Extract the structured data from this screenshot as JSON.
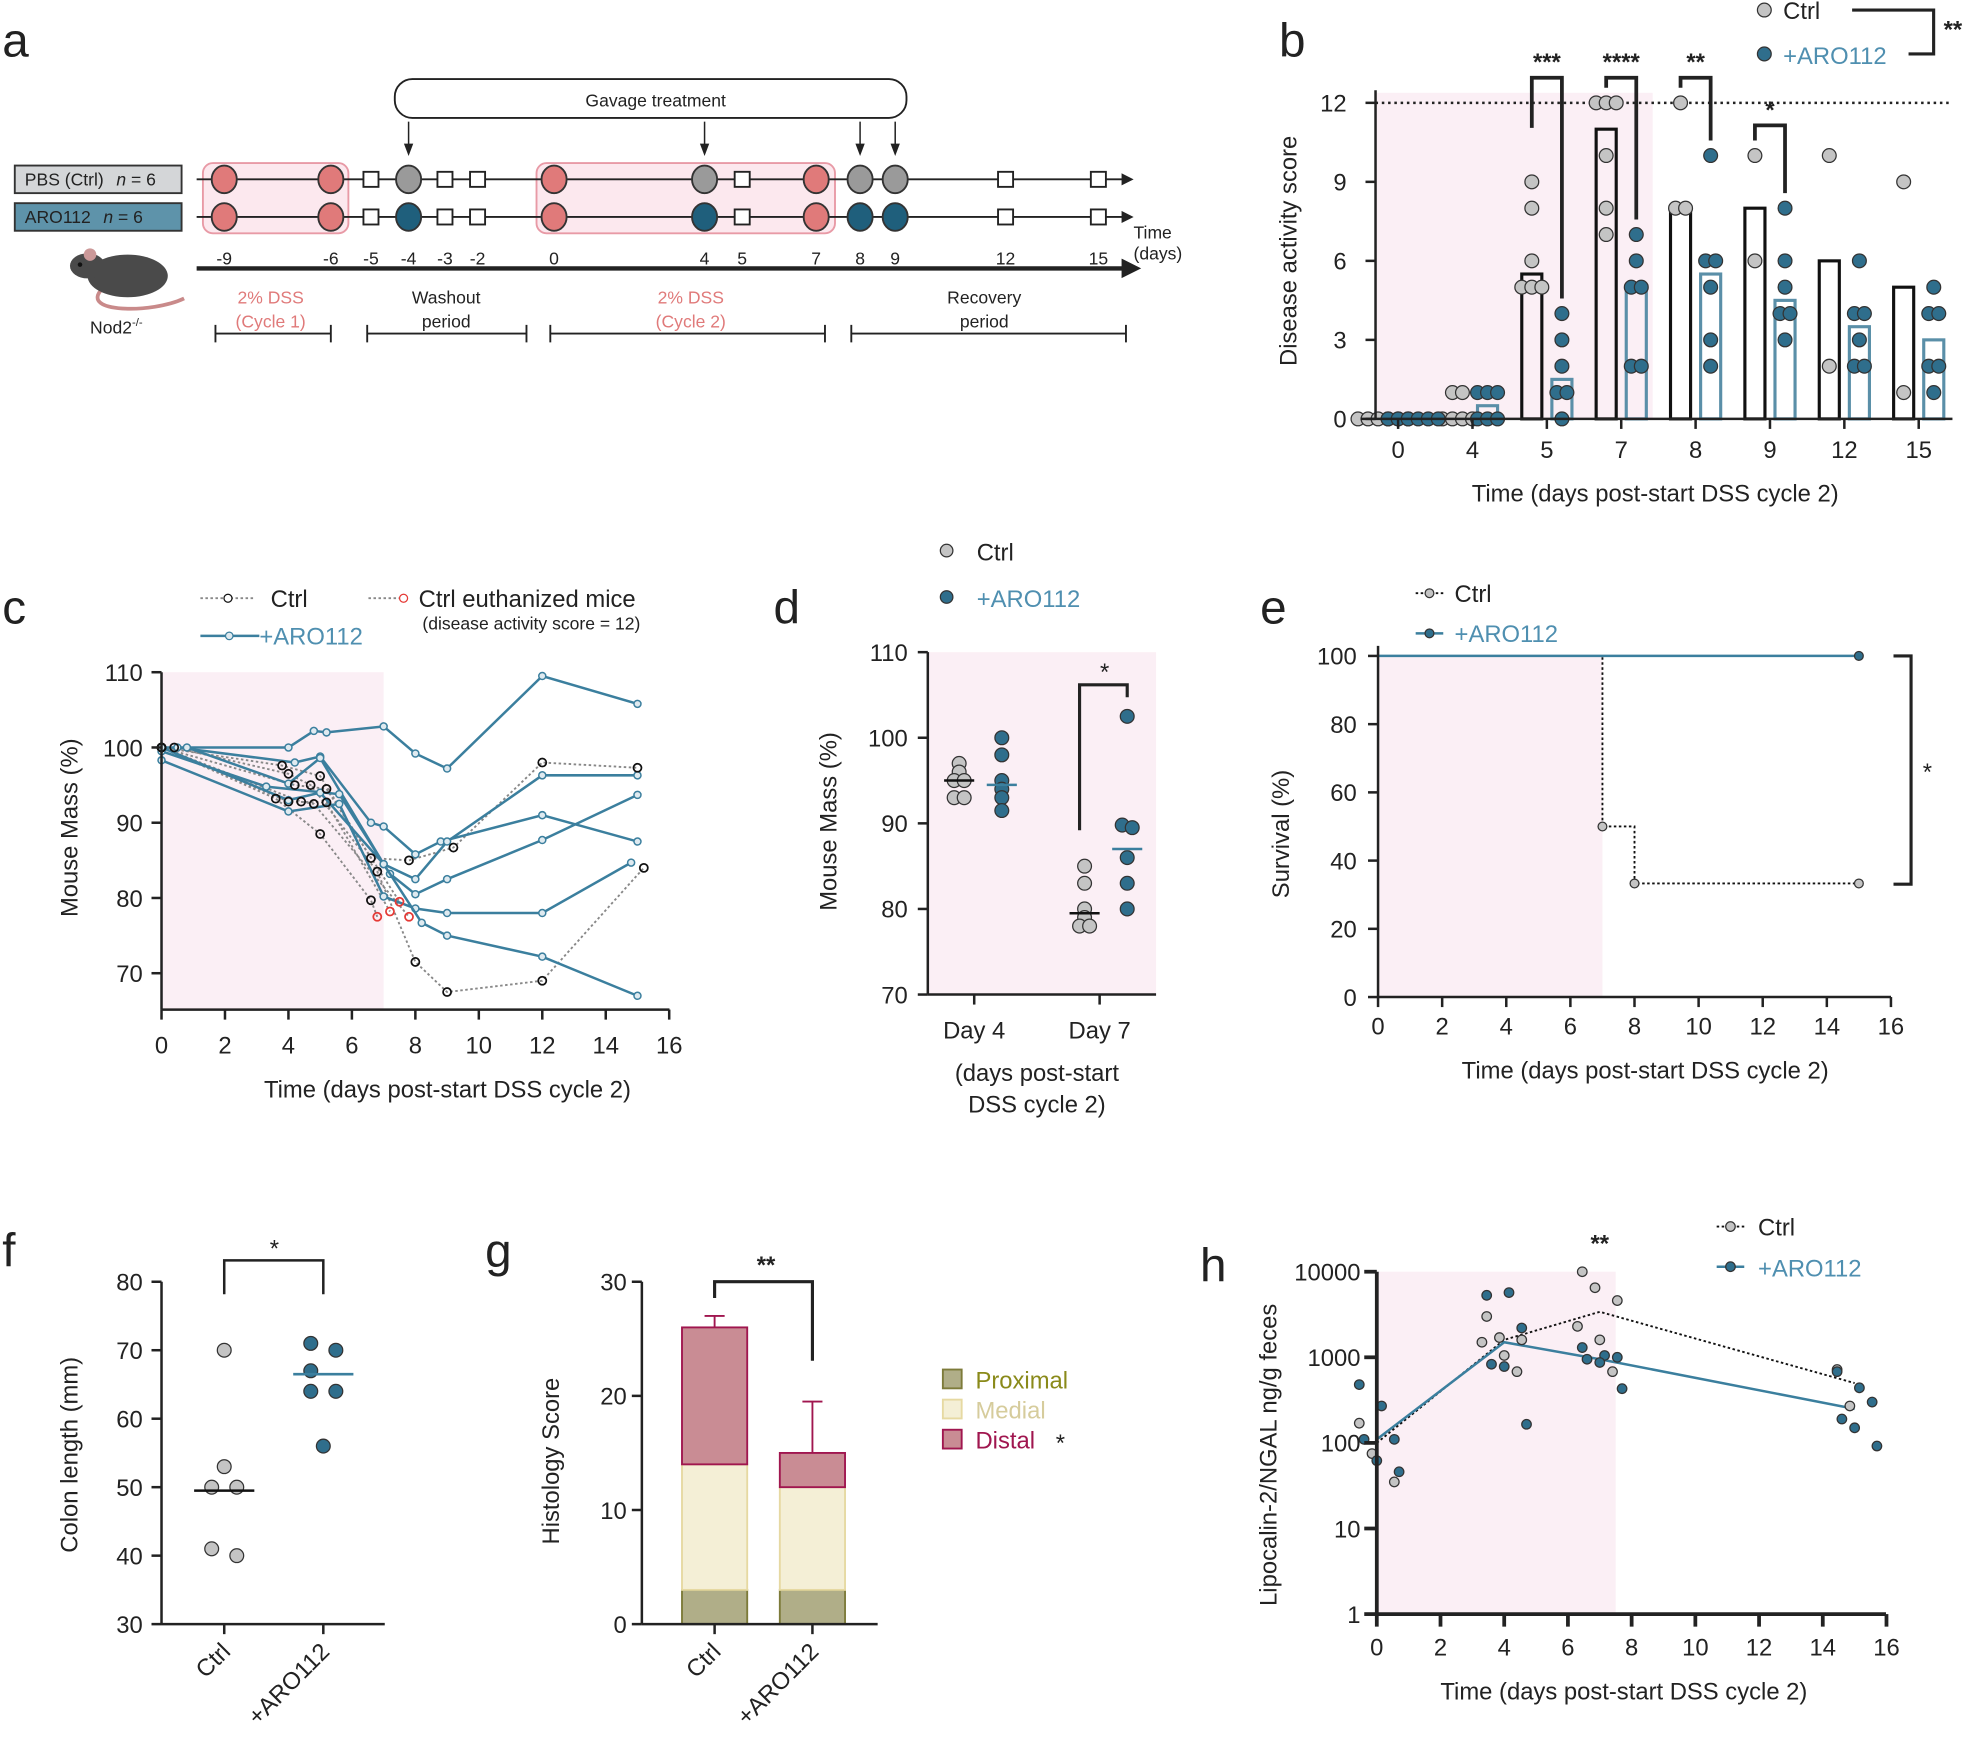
{
  "panel_labels": {
    "a": "a",
    "b": "b",
    "c": "c",
    "d": "d",
    "e": "e",
    "f": "f",
    "g": "g",
    "h": "h"
  },
  "colors": {
    "ctrl_point": "#c4c4c4",
    "aro_point": "#2f6e8c",
    "aro_line": "#3b7f9e",
    "aro_text": "#4f8fb0",
    "dss_shade": "#fbeff5",
    "euthanized": "#e53935",
    "dss_circle": "#e07a7a",
    "gray_circle": "#9a9a9a"
  },
  "panel_a": {
    "gavage": "Gavage treatment",
    "groups": [
      {
        "label": "PBS (Ctrl)",
        "n_symbol": "n",
        "n_value": " = 6",
        "fill": "#d4d6d8"
      },
      {
        "label": "ARO112",
        "n_symbol": "n",
        "n_value": " = 6",
        "fill": "#5e93aa"
      }
    ],
    "days": [
      "-9",
      "-6",
      "-5",
      "-4",
      "-3",
      "-2",
      "0",
      "4",
      "5",
      "7",
      "8",
      "9",
      "12",
      "15"
    ],
    "events": [
      "dss",
      "dss",
      "sample",
      "gavage",
      "sample",
      "sample",
      "dss",
      "gavage",
      "sample",
      "dss",
      "gavage",
      "gavage",
      "sample",
      "sample"
    ],
    "time_label": [
      "Time",
      "(days)"
    ],
    "mouse_label": "Nod2",
    "mouse_sup": "-/-",
    "phases": [
      {
        "line1": "2% DSS",
        "line2": "(Cycle 1)",
        "color": "#e07a7a"
      },
      {
        "line1": "Washout",
        "line2": "period",
        "color": "#222222"
      },
      {
        "line1": "2% DSS",
        "line2": "(Cycle 2)",
        "color": "#e07a7a"
      },
      {
        "line1": "Recovery",
        "line2": "period",
        "color": "#222222"
      }
    ]
  },
  "chart_data": [
    {
      "panel": "b",
      "type": "bar",
      "categories": [
        "0",
        "4",
        "5",
        "7",
        "8",
        "9",
        "12",
        "15"
      ],
      "ylabel": "Disease activity score",
      "xlabel": "Time (days post-start DSS cycle 2)",
      "ylim": [
        0,
        12
      ],
      "y_ticks": [
        "0",
        "3",
        "6",
        "9",
        "12"
      ],
      "threshold": 12,
      "shaded_until": "7",
      "legend": [
        "Ctrl",
        "+ARO112"
      ],
      "overall_significance": "**",
      "series": [
        {
          "name": "Ctrl",
          "means": [
            0,
            0,
            5.5,
            11,
            8,
            8,
            6,
            5
          ],
          "points": [
            [
              0,
              0,
              0,
              0,
              0,
              0
            ],
            [
              0,
              0,
              0,
              0,
              1,
              1
            ],
            [
              5,
              5,
              5,
              6,
              8,
              9
            ],
            [
              12,
              12,
              12,
              10,
              8,
              7
            ],
            [
              12,
              8,
              8
            ],
            [
              10,
              6
            ],
            [
              10,
              2
            ],
            [
              9,
              1
            ]
          ]
        },
        {
          "name": "+ARO112",
          "means": [
            0,
            0.5,
            1.5,
            5,
            5.5,
            4.5,
            3.5,
            3
          ],
          "points": [
            [
              0,
              0,
              0,
              0,
              0,
              0
            ],
            [
              0,
              0,
              0,
              1,
              1,
              1
            ],
            [
              0,
              1,
              1,
              2,
              3,
              4
            ],
            [
              2,
              2,
              5,
              5,
              6,
              7
            ],
            [
              2,
              3,
              5,
              6,
              6,
              10
            ],
            [
              3,
              4,
              4,
              5,
              6,
              8
            ],
            [
              2,
              2,
              3,
              4,
              4,
              6
            ],
            [
              1,
              2,
              2,
              4,
              4,
              5
            ]
          ]
        }
      ],
      "significance": [
        {
          "index": 2,
          "label": "***"
        },
        {
          "index": 3,
          "label": "****"
        },
        {
          "index": 4,
          "label": "**"
        },
        {
          "index": 5,
          "label": "*"
        }
      ]
    },
    {
      "panel": "c",
      "type": "line",
      "xlabel": "Time (days post-start DSS cycle 2)",
      "ylabel": "Mouse Mass (%)",
      "xlim": [
        0,
        16
      ],
      "ylim": [
        65,
        110
      ],
      "x_ticks": [
        "0",
        "2",
        "4",
        "6",
        "8",
        "10",
        "12",
        "14",
        "16"
      ],
      "y_ticks": [
        "70",
        "80",
        "90",
        "100",
        "110"
      ],
      "legend": {
        "ctrl": "Ctrl",
        "aro": "+ARO112",
        "euthanized": "Ctrl euthanized mice",
        "euthanized_note": "(disease activity score = 12)"
      },
      "ctrl_lines": [
        {
          "points": [
            [
              0,
              100
            ],
            [
              3.8,
              97.6
            ],
            [
              5,
              96.2
            ],
            [
              6.6,
              85.3
            ],
            [
              7.8,
              85
            ],
            [
              9.2,
              86.7
            ],
            [
              12,
              98
            ],
            [
              15,
              97.3
            ]
          ],
          "euthanized": false
        },
        {
          "points": [
            [
              0.4,
              100
            ],
            [
              4,
              96.5
            ],
            [
              4.7,
              95
            ],
            [
              6.8,
              83.5
            ],
            [
              8,
              71.5
            ],
            [
              9,
              67.5
            ],
            [
              12,
              69
            ],
            [
              15.2,
              84
            ]
          ],
          "euthanized": false
        },
        {
          "points": [
            [
              0,
              100
            ],
            [
              4.2,
              95
            ],
            [
              5.2,
              94.5
            ],
            [
              7.5,
              79.5
            ]
          ],
          "euthanized": true
        },
        {
          "points": [
            [
              0,
              100
            ],
            [
              3.6,
              93.2
            ],
            [
              5,
              88.5
            ],
            [
              6.6,
              79.7
            ],
            [
              6.8,
              77.5
            ]
          ],
          "euthanized": true
        },
        {
          "points": [
            [
              0,
              100
            ],
            [
              4,
              92.8
            ],
            [
              5.2,
              92.7
            ],
            [
              7.2,
              78.2
            ]
          ],
          "euthanized": true
        },
        {
          "points": [
            [
              0,
              100
            ],
            [
              4.4,
              92.8
            ],
            [
              4.8,
              92.5
            ],
            [
              7.8,
              77.5
            ]
          ],
          "euthanized": true
        }
      ],
      "aro_lines": [
        [
          [
            0,
            100
          ],
          [
            4,
            100
          ],
          [
            4.8,
            102.2
          ],
          [
            5.2,
            102
          ],
          [
            7,
            102.8
          ],
          [
            8,
            99.2
          ],
          [
            9,
            97.2
          ],
          [
            12,
            109.5
          ],
          [
            15,
            105.8
          ]
        ],
        [
          [
            0.5,
            100
          ],
          [
            4.2,
            98
          ],
          [
            5,
            98.8
          ],
          [
            6.6,
            90
          ],
          [
            7,
            89.5
          ],
          [
            8,
            85.8
          ],
          [
            8.8,
            87.5
          ],
          [
            12,
            91
          ],
          [
            15,
            87.5
          ]
        ],
        [
          [
            0.8,
            100
          ],
          [
            4,
            95.2
          ],
          [
            5,
            98.6
          ],
          [
            7,
            84.5
          ],
          [
            8,
            82.5
          ],
          [
            9,
            87.5
          ],
          [
            12,
            96.3
          ],
          [
            15,
            96.3
          ]
        ],
        [
          [
            0,
            99.5
          ],
          [
            3.3,
            94.8
          ],
          [
            5.6,
            93.8
          ],
          [
            7.2,
            83.2
          ],
          [
            8,
            80.5
          ],
          [
            9,
            82.5
          ],
          [
            12,
            87.7
          ],
          [
            15,
            93.7
          ]
        ],
        [
          [
            0,
            98.3
          ],
          [
            4,
            91.5
          ],
          [
            5.6,
            92.5
          ],
          [
            7,
            80.2
          ],
          [
            8,
            78.6
          ],
          [
            9,
            78
          ],
          [
            12,
            78
          ],
          [
            14.8,
            84.7
          ]
        ],
        [
          [
            0,
            100
          ],
          [
            4,
            93
          ],
          [
            5,
            94
          ],
          [
            7,
            84.5
          ],
          [
            8.2,
            76.7
          ],
          [
            9,
            75
          ],
          [
            12,
            72.2
          ],
          [
            15,
            67
          ]
        ]
      ]
    },
    {
      "panel": "d",
      "type": "scatter",
      "categories": [
        "Day 4",
        "Day 7"
      ],
      "xlabel": [
        "(days post-start",
        "DSS cycle 2)"
      ],
      "ylabel": "Mouse Mass (%)",
      "ylim": [
        70,
        110
      ],
      "y_ticks": [
        "70",
        "80",
        "90",
        "100",
        "110"
      ],
      "legend": [
        "Ctrl",
        "+ARO112"
      ],
      "series": [
        {
          "name": "Ctrl",
          "points": [
            [
              97,
              96,
              95,
              95,
              93,
              93
            ],
            [
              85,
              83,
              80,
              79,
              78,
              78
            ]
          ],
          "means": [
            95,
            79.5
          ]
        },
        {
          "name": "+ARO112",
          "points": [
            [
              100,
              98,
              95,
              94,
              93,
              91.5
            ],
            [
              102.5,
              89.8,
              89.5,
              86,
              83,
              80
            ]
          ],
          "means": [
            94.5,
            87
          ]
        }
      ],
      "significance": [
        {
          "category": "Day 7",
          "label": "*"
        }
      ]
    },
    {
      "panel": "e",
      "type": "line",
      "xlabel": "Time (days post-start DSS cycle 2)",
      "ylabel": "Survival (%)",
      "xlim": [
        0,
        16
      ],
      "ylim": [
        0,
        100
      ],
      "x_ticks": [
        "0",
        "2",
        "4",
        "6",
        "8",
        "10",
        "12",
        "14",
        "16"
      ],
      "y_ticks": [
        "0",
        "20",
        "40",
        "60",
        "80",
        "100"
      ],
      "legend": [
        "Ctrl",
        "+ARO112"
      ],
      "shaded_until": 7,
      "series": [
        {
          "name": "Ctrl",
          "steps": [
            [
              0,
              100
            ],
            [
              7,
              50
            ],
            [
              8,
              33.3
            ],
            [
              15,
              33.3
            ]
          ]
        },
        {
          "name": "+ARO112",
          "steps": [
            [
              0,
              100
            ],
            [
              15,
              100
            ]
          ]
        }
      ],
      "significance": "*"
    },
    {
      "panel": "f",
      "type": "scatter",
      "categories": [
        "Ctrl",
        "+ARO112"
      ],
      "ylabel": "Colon length (mm)",
      "ylim": [
        30,
        80
      ],
      "y_ticks": [
        "30",
        "40",
        "50",
        "60",
        "70",
        "80"
      ],
      "series": [
        {
          "name": "Ctrl",
          "points": [
            70,
            53,
            50,
            50,
            41,
            40
          ],
          "mean": 49.5
        },
        {
          "name": "+ARO112",
          "points": [
            71,
            70,
            64,
            64,
            56,
            67
          ],
          "mean": 66.5
        }
      ],
      "significance": "*"
    },
    {
      "panel": "g",
      "type": "bar",
      "stacked": true,
      "categories": [
        "Ctrl",
        "+ARO112"
      ],
      "ylabel": "Histology Score",
      "ylim": [
        0,
        30
      ],
      "y_ticks": [
        "0",
        "10",
        "20",
        "30"
      ],
      "series": [
        {
          "name": "Proximal",
          "values": [
            3,
            3
          ],
          "error": [
            0,
            0
          ],
          "fill": "#b0ae88",
          "stroke": "#7d7b3a",
          "text": "#8a8a1a",
          "annotation": ""
        },
        {
          "name": "Medial",
          "values": [
            11,
            9
          ],
          "error": [
            1,
            0.5
          ],
          "fill": "#f4efd6",
          "stroke": "#e6d9a2",
          "text": "#d6cc9c",
          "annotation": ""
        },
        {
          "name": "Distal",
          "values": [
            12,
            3
          ],
          "error": [
            1,
            4.5
          ],
          "fill": "#c98c94",
          "stroke": "#a0164f",
          "text": "#a0164f",
          "annotation": "*"
        }
      ],
      "significance": "**"
    },
    {
      "panel": "h",
      "type": "line",
      "xlabel": "Time (days post-start DSS cycle 2)",
      "ylabel": "Lipocalin-2/NGAL ng/g feces",
      "xlim": [
        0,
        16
      ],
      "ylim": [
        1,
        10000
      ],
      "yscale": "log",
      "x_ticks": [
        "0",
        "2",
        "4",
        "6",
        "8",
        "10",
        "12",
        "14",
        "16"
      ],
      "y_ticks": [
        "1",
        "10",
        "100",
        "1000",
        "10000"
      ],
      "legend": [
        "Ctrl",
        "+ARO112"
      ],
      "shaded_until": 7.5,
      "series": [
        {
          "name": "Ctrl",
          "mean_line": [
            [
              0,
              100
            ],
            [
              4,
              1600
            ],
            [
              7,
              3400
            ],
            [
              15,
              500
            ]
          ],
          "points": {
            "0": [
              170,
              75,
              35
            ],
            "4": [
              3000,
              1700,
              1600,
              1500,
              1050,
              680
            ],
            "7": [
              10000,
              6500,
              4600,
              2300,
              1600,
              680
            ],
            "15": [
              720,
              270
            ]
          }
        },
        {
          "name": "+ARO112",
          "mean_line": [
            [
              0,
              110
            ],
            [
              4,
              1500
            ],
            [
              7,
              950
            ],
            [
              15,
              250
            ]
          ],
          "points": {
            "0": [
              480,
              270,
              110,
              110,
              62,
              46
            ],
            "4": [
              5300,
              5700,
              2200,
              830,
              780,
              165
            ],
            "7": [
              1300,
              1050,
              1000,
              950,
              870,
              430
            ],
            "15": [
              680,
              440,
              300,
              190,
              150,
              92
            ]
          }
        }
      ],
      "significance": [
        {
          "x": 7,
          "label": "**"
        }
      ]
    }
  ]
}
